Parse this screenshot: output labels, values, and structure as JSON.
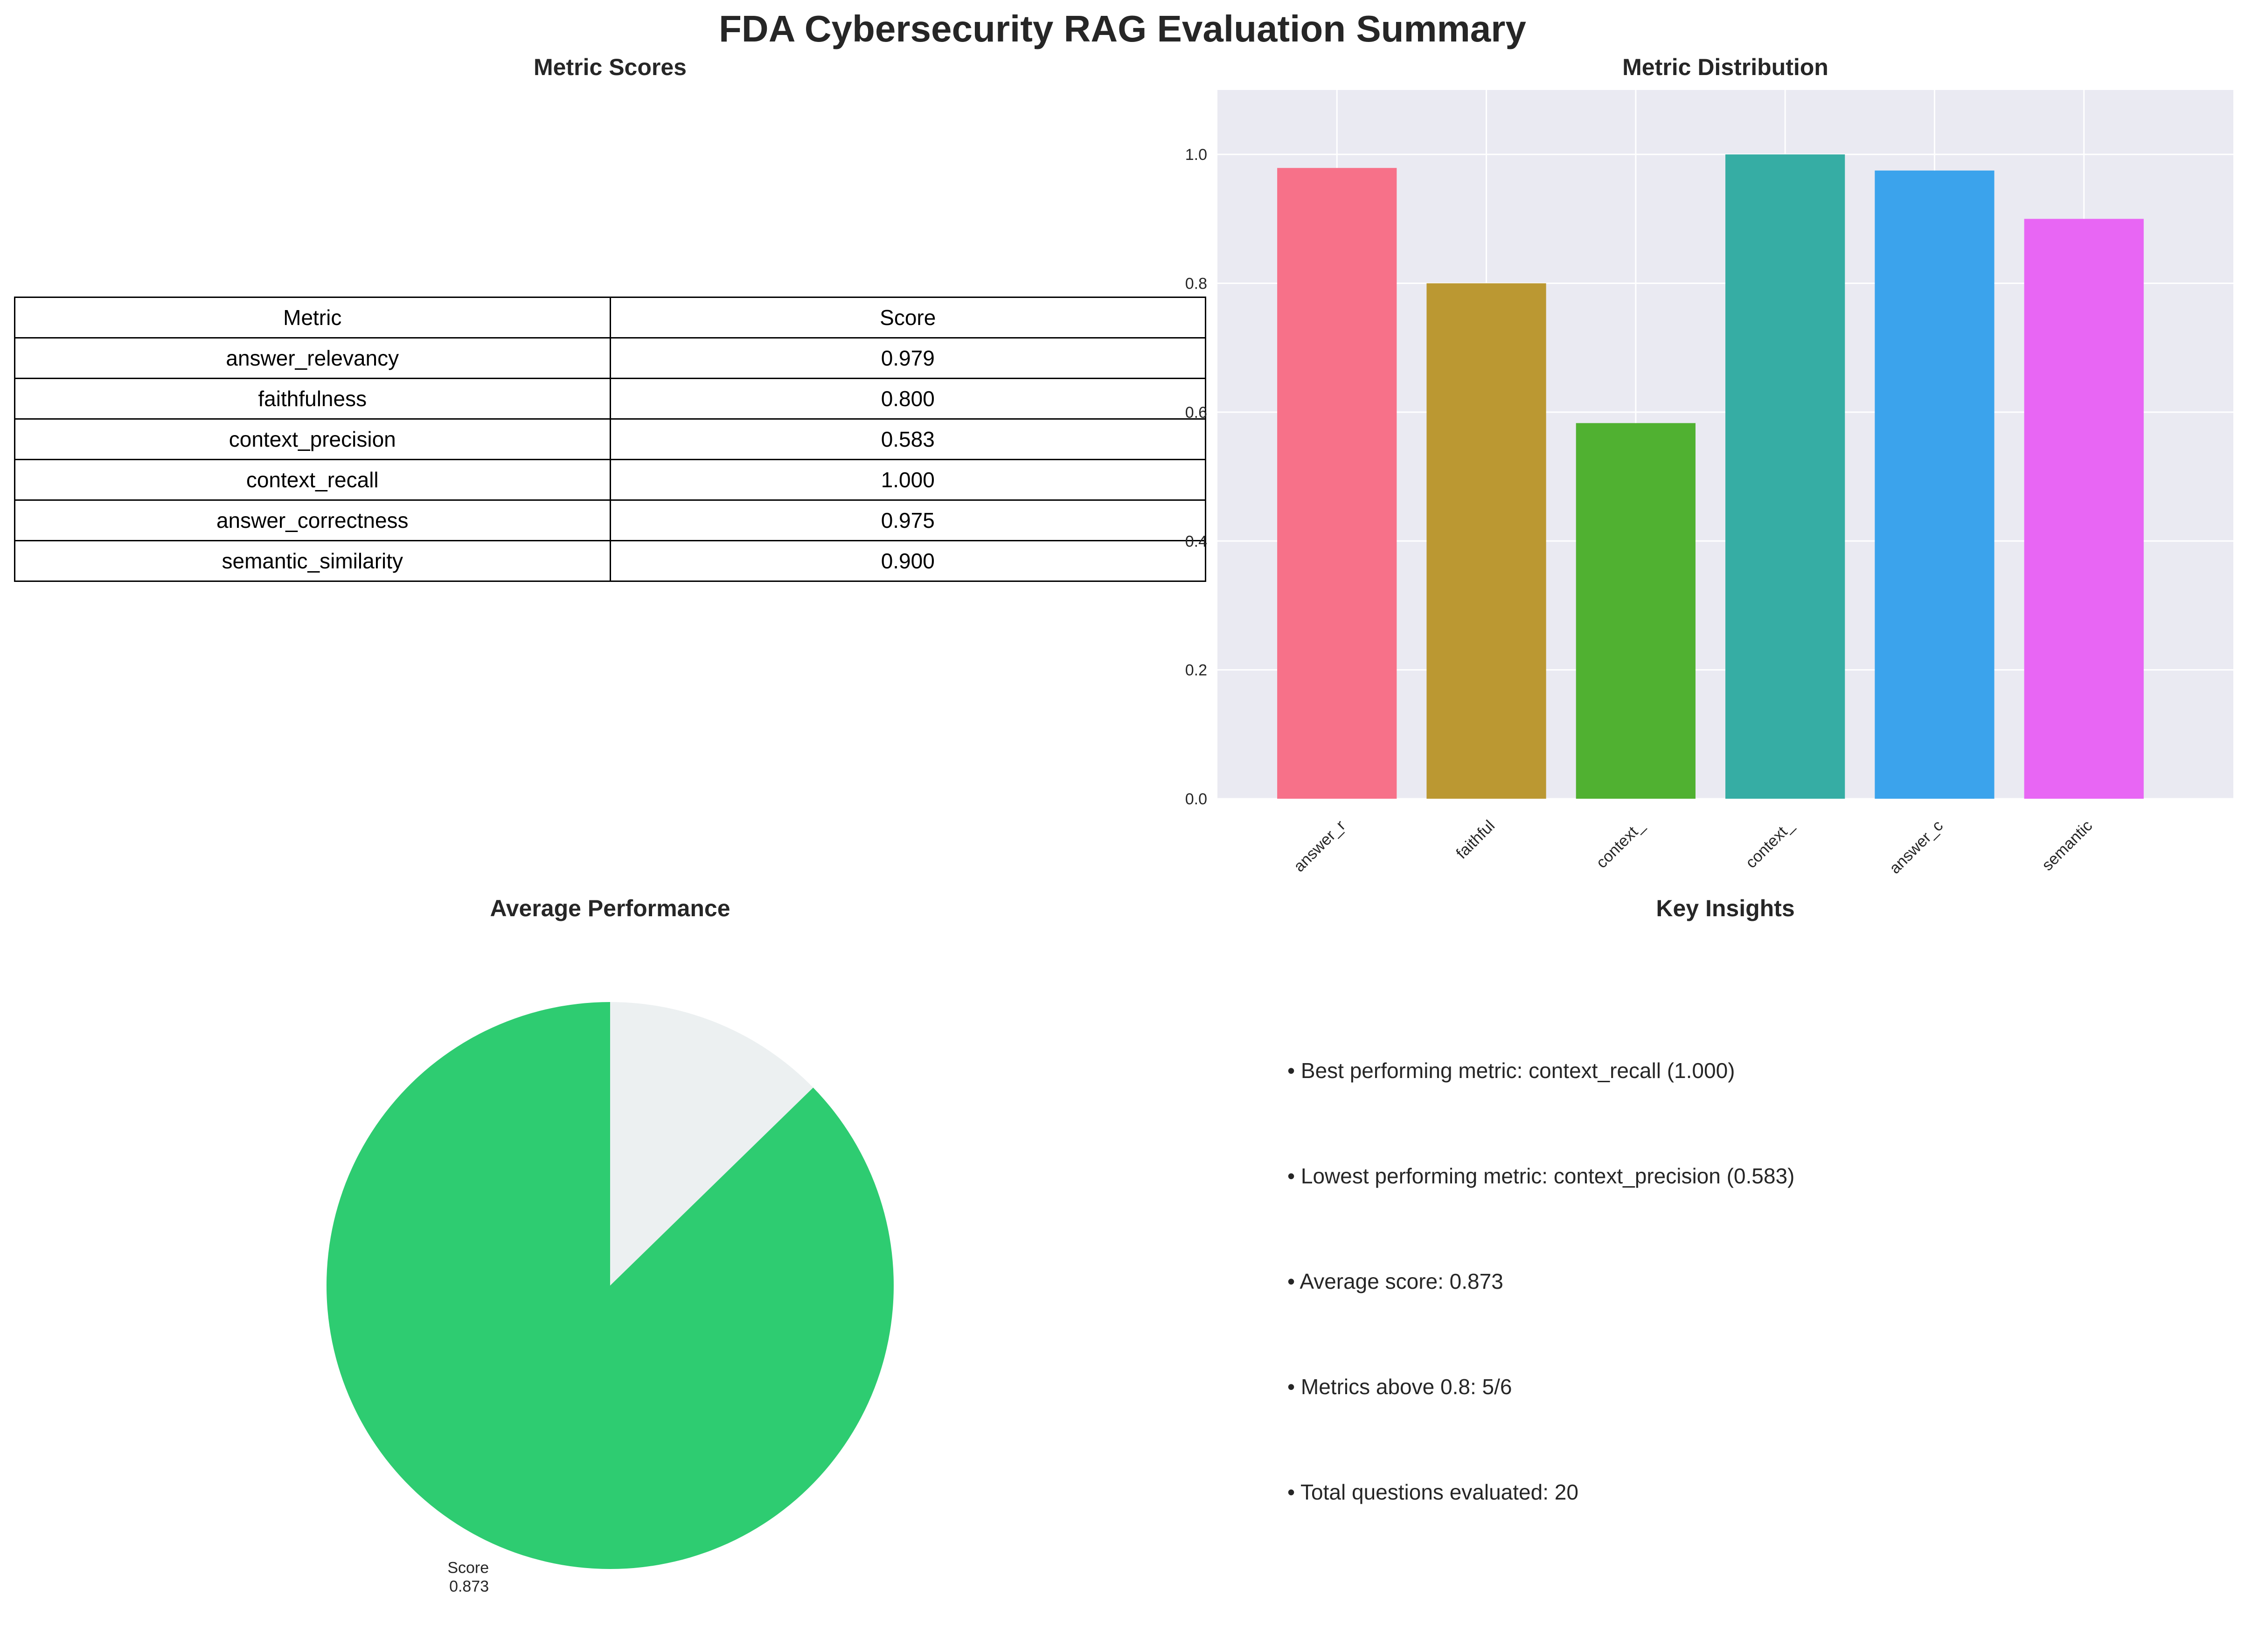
{
  "title": "FDA Cybersecurity RAG Evaluation Summary",
  "panels": {
    "table_title": "Metric Scores",
    "bar_title": "Metric Distribution",
    "pie_title": "Average Performance",
    "insights_title": "Key Insights"
  },
  "table": {
    "headers": [
      "Metric",
      "Score"
    ],
    "rows": [
      [
        "answer_relevancy",
        "0.979"
      ],
      [
        "faithfulness",
        "0.800"
      ],
      [
        "context_precision",
        "0.583"
      ],
      [
        "context_recall",
        "1.000"
      ],
      [
        "answer_correctness",
        "0.975"
      ],
      [
        "semantic_similarity",
        "0.900"
      ]
    ]
  },
  "insights": [
    "• Best performing metric: context_recall (1.000)",
    "• Lowest performing metric: context_precision (0.583)",
    "• Average score: 0.873",
    "• Metrics above 0.8: 5/6",
    "• Total questions evaluated: 20"
  ],
  "chart_data": [
    {
      "type": "bar",
      "title": "Metric Distribution",
      "categories": [
        "answer_r",
        "faithful",
        "context_",
        "context_",
        "answer_c",
        "semantic"
      ],
      "values": [
        0.979,
        0.8,
        0.583,
        1.0,
        0.975,
        0.9
      ],
      "colors": [
        "#f77189",
        "#bb9832",
        "#50b131",
        "#36ada4",
        "#3ba3ec",
        "#e866f4"
      ],
      "ylim": [
        0,
        1.1
      ],
      "yticks": [
        "0.0",
        "0.2",
        "0.4",
        "0.6",
        "0.8",
        "1.0"
      ],
      "grid": true,
      "background": "#eaeaf2"
    },
    {
      "type": "pie",
      "title": "Average Performance",
      "values": [
        0.873,
        0.127
      ],
      "labels": [
        "Score\n0.873",
        ""
      ],
      "colors": [
        "#2ecc71",
        "#ecf0f1"
      ]
    }
  ]
}
